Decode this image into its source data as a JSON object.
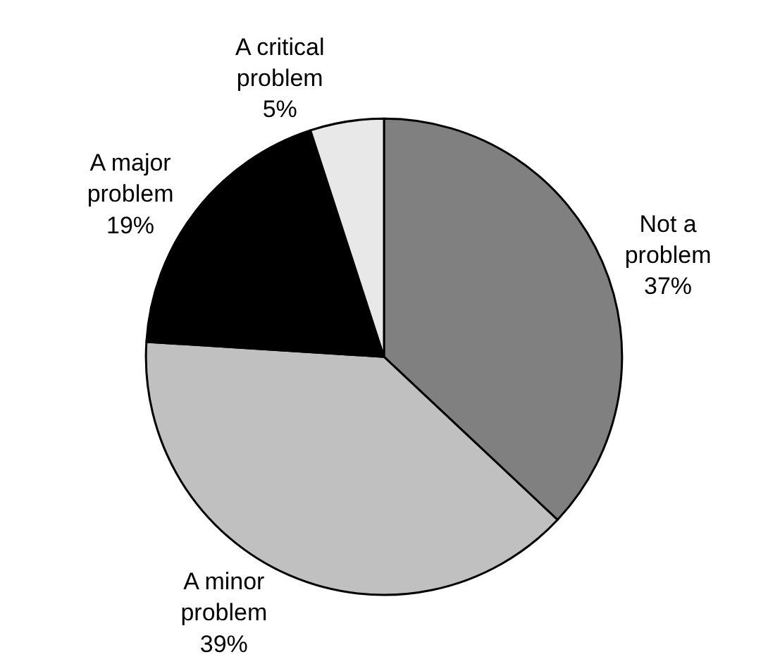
{
  "chart_data": {
    "type": "pie",
    "categories": [
      "Not a problem",
      "A minor problem",
      "A major problem",
      "A critical problem"
    ],
    "values": [
      37,
      39,
      19,
      5
    ],
    "value_labels": [
      "37%",
      "39%",
      "19%",
      "5%"
    ],
    "colors": [
      "#808080",
      "#c0c0c0",
      "#000000",
      "#e8e8e8"
    ],
    "legend": false
  }
}
